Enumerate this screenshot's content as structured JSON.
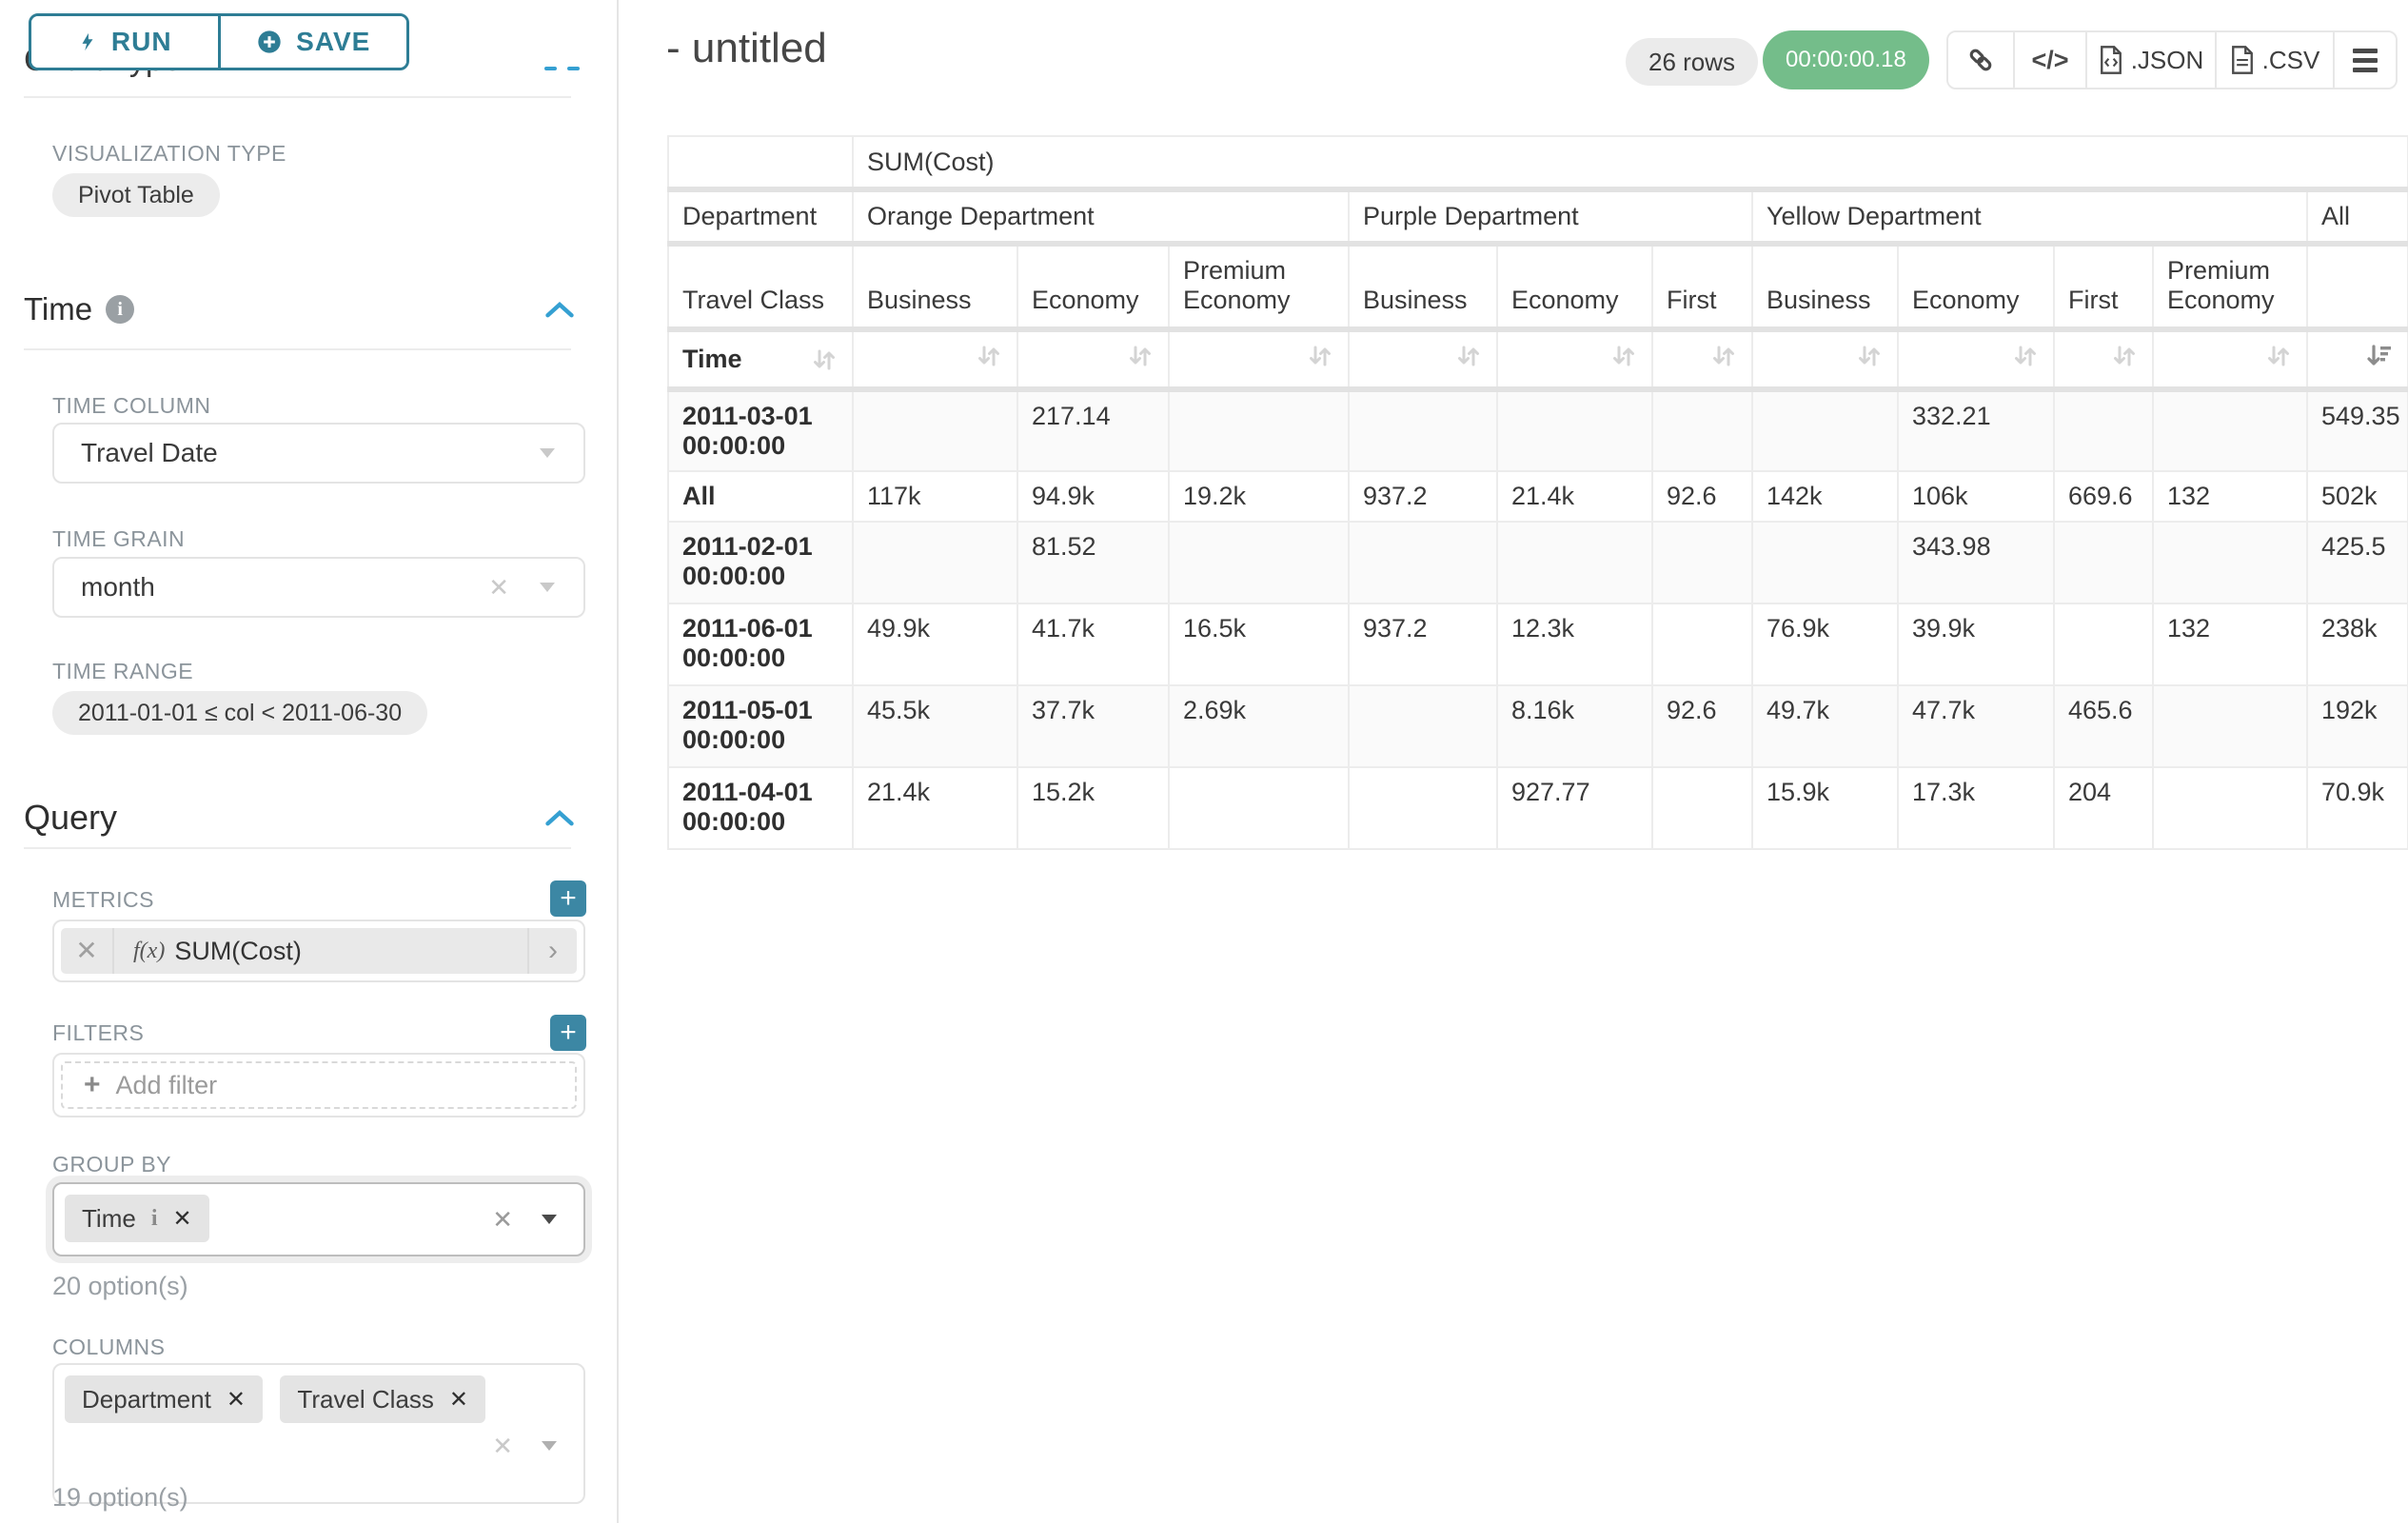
{
  "colors": {
    "accent_teal": "#2e7d95",
    "chevron_blue": "#35a0d2",
    "timer_green": "#74bd8a"
  },
  "sidebar": {
    "run_label": "RUN",
    "save_label": "SAVE",
    "chart_type": {
      "title": "Chart Type",
      "viz_type_label": "VISUALIZATION TYPE",
      "viz_type_value": "Pivot Table"
    },
    "time": {
      "title": "Time",
      "time_column_label": "TIME COLUMN",
      "time_column_value": "Travel Date",
      "time_grain_label": "TIME GRAIN",
      "time_grain_value": "month",
      "time_range_label": "TIME RANGE",
      "time_range_value": "2011-01-01 ≤ col < 2011-06-30"
    },
    "query": {
      "title": "Query",
      "metrics_label": "METRICS",
      "metric_prefix": "f(x)",
      "metric_value": "SUM(Cost)",
      "filters_label": "FILTERS",
      "add_filter_label": "Add filter",
      "group_by_label": "GROUP BY",
      "group_by_chips": [
        "Time"
      ],
      "group_by_options": "20 option(s)",
      "columns_label": "COLUMNS",
      "columns_chips": [
        "Department",
        "Travel Class"
      ],
      "columns_options": "19 option(s)"
    }
  },
  "header": {
    "title": "- untitled",
    "rows_badge": "26 rows",
    "timer_badge": "00:00:00.18",
    "toolbar": {
      "code_label": "</>",
      "json_label": ".JSON",
      "csv_label": ".CSV"
    }
  },
  "pivot": {
    "metric_header": "SUM(Cost)",
    "department_label": "Department",
    "travel_class_label": "Travel Class",
    "time_label": "Time",
    "groups": [
      {
        "label": "Orange Department",
        "cols": [
          "Business",
          "Economy",
          "Premium Economy"
        ]
      },
      {
        "label": "Purple Department",
        "cols": [
          "Business",
          "Economy",
          "First"
        ]
      },
      {
        "label": "Yellow Department",
        "cols": [
          "Business",
          "Economy",
          "First",
          "Premium Economy"
        ]
      },
      {
        "label": "All",
        "cols": [
          ""
        ]
      }
    ],
    "rows": [
      {
        "label": "2011-03-01 00:00:00",
        "values": [
          "",
          "217.14",
          "",
          "",
          "",
          "",
          "",
          "332.21",
          "",
          "",
          "549.35"
        ]
      },
      {
        "label": "All",
        "values": [
          "117k",
          "94.9k",
          "19.2k",
          "937.2",
          "21.4k",
          "92.6",
          "142k",
          "106k",
          "669.6",
          "132",
          "502k"
        ]
      },
      {
        "label": "2011-02-01 00:00:00",
        "values": [
          "",
          "81.52",
          "",
          "",
          "",
          "",
          "",
          "343.98",
          "",
          "",
          "425.5"
        ]
      },
      {
        "label": "2011-06-01 00:00:00",
        "values": [
          "49.9k",
          "41.7k",
          "16.5k",
          "937.2",
          "12.3k",
          "",
          "76.9k",
          "39.9k",
          "",
          "132",
          "238k"
        ]
      },
      {
        "label": "2011-05-01 00:00:00",
        "values": [
          "45.5k",
          "37.7k",
          "2.69k",
          "",
          "8.16k",
          "92.6",
          "49.7k",
          "47.7k",
          "465.6",
          "",
          "192k"
        ]
      },
      {
        "label": "2011-04-01 00:00:00",
        "values": [
          "21.4k",
          "15.2k",
          "",
          "",
          "927.77",
          "",
          "15.9k",
          "17.3k",
          "204",
          "",
          "70.9k"
        ]
      }
    ]
  }
}
